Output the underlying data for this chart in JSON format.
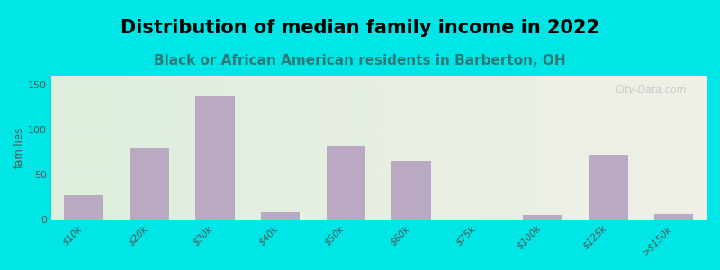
{
  "title": "Distribution of median family income in 2022",
  "subtitle": "Black or African American residents in Barberton, OH",
  "ylabel": "families",
  "categories": [
    "$10k",
    "$20k",
    "$30k",
    "$40k",
    "$50k",
    "$60k",
    "$75k",
    "$100k",
    "$125k",
    ">$150k"
  ],
  "values": [
    27,
    80,
    137,
    8,
    82,
    65,
    0,
    5,
    72,
    6
  ],
  "bar_color": "#b39dbd",
  "background_outer": "#00e5e5",
  "background_inner_left": "#ddeedd",
  "background_inner_right": "#f0f0e8",
  "ylim": [
    0,
    160
  ],
  "yticks": [
    0,
    50,
    100,
    150
  ],
  "title_fontsize": 15,
  "subtitle_fontsize": 11,
  "watermark": "City-Data.com"
}
